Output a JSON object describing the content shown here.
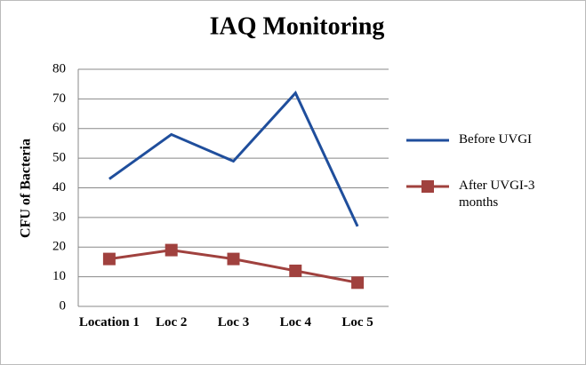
{
  "chart_data": {
    "type": "line",
    "title": "IAQ Monitoring",
    "y_label": "CFU of Bacteria",
    "categories": [
      "Location 1",
      "Loc 2",
      "Loc 3",
      "Loc 4",
      "Loc 5"
    ],
    "series": [
      {
        "name": "Before UVGI",
        "color": "#1f4e9c",
        "values": [
          43,
          58,
          49,
          72,
          27
        ]
      },
      {
        "name": "After UVGI-3 months",
        "color": "#a0413e",
        "marker": "square",
        "values": [
          16,
          19,
          16,
          12,
          8
        ]
      }
    ],
    "ylim": [
      0,
      80
    ],
    "yticks": [
      0,
      10,
      20,
      30,
      40,
      50,
      60,
      70,
      80
    ],
    "grid": true,
    "legend": "right"
  }
}
